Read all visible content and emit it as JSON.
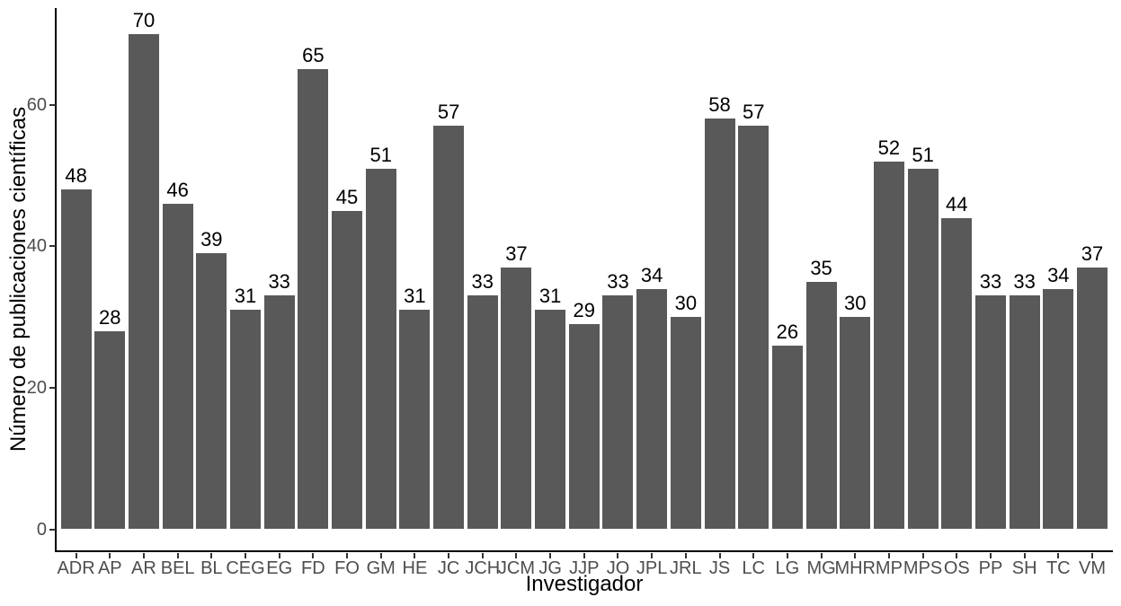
{
  "figure": {
    "background": "#ffffff"
  },
  "chart_data": {
    "type": "bar",
    "title": "",
    "xlabel": "Investigador",
    "ylabel": "Número de publicaciones científicas",
    "categories": [
      "ADR",
      "AP",
      "AR",
      "BEL",
      "BL",
      "CEG",
      "EG",
      "FD",
      "FO",
      "GM",
      "HE",
      "JC",
      "JCH",
      "JCM",
      "JG",
      "JJP",
      "JO",
      "JPL",
      "JRL",
      "JS",
      "LC",
      "LG",
      "MG",
      "MHR",
      "MP",
      "MPS",
      "OS",
      "PP",
      "SH",
      "TC",
      "VM"
    ],
    "values": [
      48,
      28,
      70,
      46,
      39,
      31,
      33,
      65,
      45,
      51,
      31,
      57,
      33,
      37,
      31,
      29,
      33,
      34,
      30,
      58,
      57,
      26,
      35,
      30,
      52,
      51,
      44,
      33,
      33,
      34,
      37
    ],
    "bar_value_labels_shown": true,
    "yticks": [
      0,
      20,
      40,
      60
    ],
    "ylim": [
      0,
      73.5
    ],
    "grid": false,
    "legend": false,
    "bar_color": "#595959",
    "axis_color": "#000000",
    "tick_color": "#333333",
    "tick_label_color": "#4d4d4d",
    "value_label_color": "#000000"
  }
}
